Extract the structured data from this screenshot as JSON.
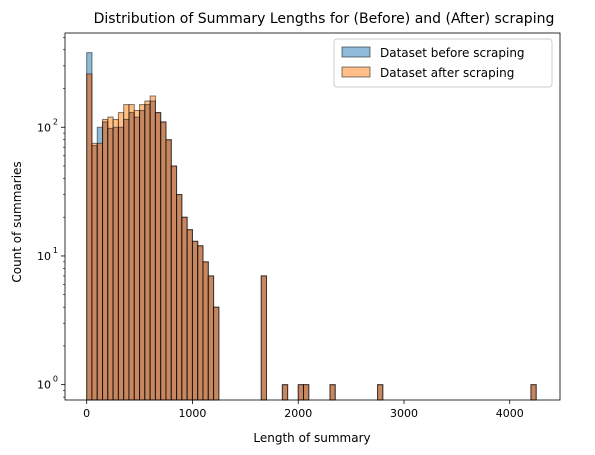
{
  "chart_data": {
    "type": "bar",
    "subtype": "histogram",
    "title": "Distribution of Summary Lengths for (Before) and (After) scraping",
    "xlabel": "Length of summary",
    "ylabel": "Count of summaries",
    "yscale": "log",
    "xlim": [
      -205,
      4475
    ],
    "ylim": [
      0.76,
      540
    ],
    "x_ticks": [
      {
        "value": 0,
        "label": "0"
      },
      {
        "value": 1000,
        "label": "1000"
      },
      {
        "value": 2000,
        "label": "2000"
      },
      {
        "value": 3000,
        "label": "3000"
      },
      {
        "value": 4000,
        "label": "4000"
      }
    ],
    "y_ticks": [
      {
        "value": 1,
        "base": "10",
        "exp": "0"
      },
      {
        "value": 10,
        "base": "10",
        "exp": "1"
      },
      {
        "value": 100,
        "base": "10",
        "exp": "2"
      }
    ],
    "bin_start": 0,
    "bin_width": 50,
    "legend": {
      "placement": "top-right"
    },
    "colors": {
      "before": "#1f77b4",
      "after": "#ff7f0e",
      "overlap": "#c8875f",
      "edge": "#000000"
    },
    "series": [
      {
        "name": "Dataset before scraping",
        "color": "#1f77b4",
        "values": [
          380,
          72,
          100,
          110,
          98,
          100,
          100,
          115,
          130,
          120,
          135,
          150,
          160,
          130,
          110,
          80,
          50,
          30,
          20,
          16,
          13,
          12,
          9,
          7,
          4,
          0,
          0,
          0,
          0,
          0,
          0,
          0,
          0,
          7,
          0,
          0,
          0,
          1,
          0,
          0,
          1,
          1,
          0,
          0,
          0,
          0,
          1,
          0,
          0,
          0,
          0,
          0,
          0,
          0,
          0,
          1,
          0,
          0,
          0,
          0,
          0,
          0,
          0,
          0,
          0,
          0,
          0,
          0,
          0,
          0,
          0,
          0,
          0,
          0,
          0,
          0,
          0,
          0,
          0,
          0,
          0,
          0,
          0,
          0,
          1
        ]
      },
      {
        "name": "Dataset after scraping",
        "color": "#ff7f0e",
        "values": [
          260,
          75,
          75,
          115,
          120,
          115,
          130,
          150,
          150,
          135,
          150,
          160,
          175,
          130,
          110,
          80,
          50,
          30,
          20,
          16,
          13,
          12,
          9,
          7,
          4,
          0,
          0,
          0,
          0,
          0,
          0,
          0,
          0,
          7,
          0,
          0,
          0,
          1,
          0,
          0,
          1,
          1,
          0,
          0,
          0,
          0,
          1,
          0,
          0,
          0,
          0,
          0,
          0,
          0,
          0,
          1,
          0,
          0,
          0,
          0,
          0,
          0,
          0,
          0,
          0,
          0,
          0,
          0,
          0,
          0,
          0,
          0,
          0,
          0,
          0,
          0,
          0,
          0,
          0,
          0,
          0,
          0,
          0,
          0,
          1
        ]
      }
    ]
  }
}
